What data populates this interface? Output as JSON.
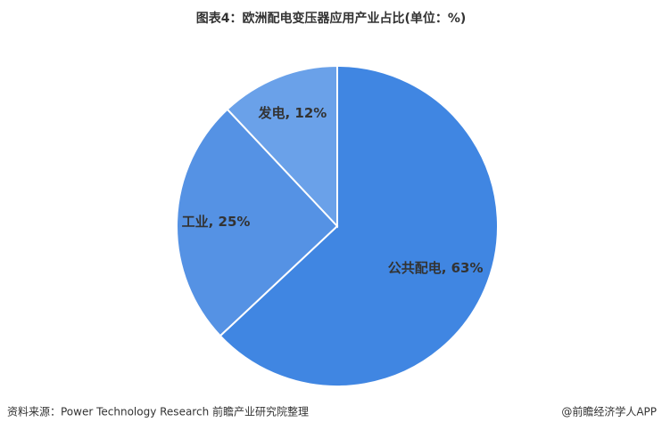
{
  "chart_data": {
    "type": "pie",
    "title": "图表4：欧洲配电变压器应用产业占比(单位：%)",
    "categories": [
      "公共配电",
      "工业",
      "发电"
    ],
    "values": [
      63,
      25,
      12
    ],
    "value_labels": [
      "公共配电, 63%",
      "工业, 25%",
      "发电, 12%"
    ],
    "colors": [
      "#4086e2",
      "#5592e4",
      "#6aa1e9"
    ]
  },
  "footer": {
    "source": "资料来源：Power Technology Research 前瞻产业研究院整理",
    "credit": "@前瞻经济学人APP"
  }
}
